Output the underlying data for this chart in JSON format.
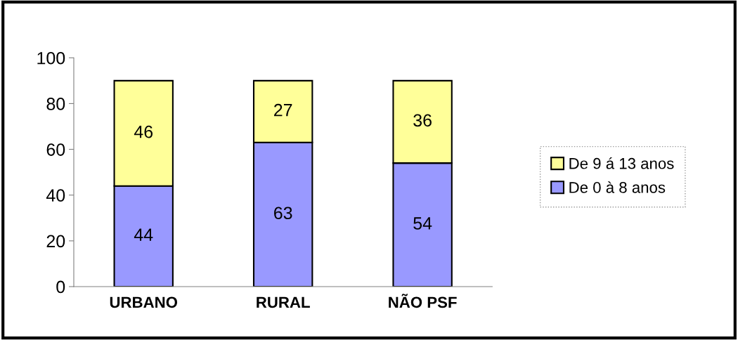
{
  "chart_data": {
    "type": "bar",
    "stacked": true,
    "categories": [
      "URBANO",
      "RURAL",
      "NÃO PSF"
    ],
    "series": [
      {
        "name": "De 0 à 8 anos",
        "color": "#9999ff",
        "values": [
          44,
          63,
          54
        ]
      },
      {
        "name": "De 9 á 13 anos",
        "color": "#ffff99",
        "values": [
          46,
          27,
          36
        ]
      }
    ],
    "ylim": [
      0,
      100
    ],
    "yticks": [
      0,
      20,
      40,
      60,
      80,
      100
    ],
    "data_labels": true,
    "legend": "right",
    "grid": false
  }
}
